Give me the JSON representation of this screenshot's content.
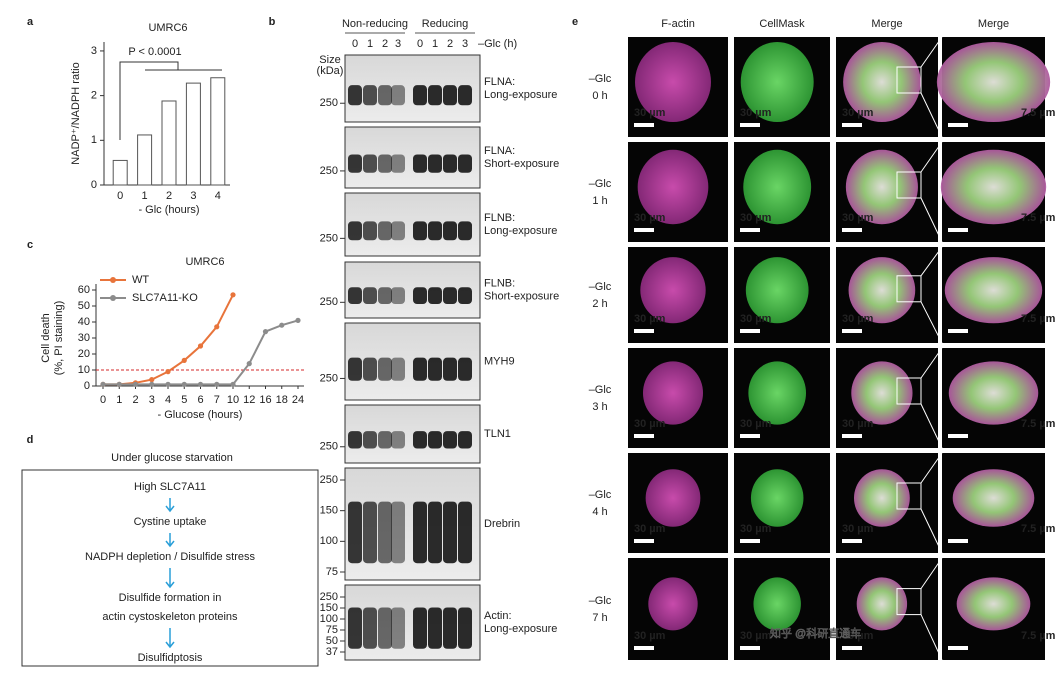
{
  "panels": [
    "a",
    "b",
    "c",
    "d",
    "e"
  ],
  "chart_data": [
    {
      "type": "bar",
      "title": "UMRC6",
      "categories": [
        "0",
        "1",
        "2",
        "3",
        "4"
      ],
      "values": [
        0.55,
        1.12,
        1.88,
        2.28,
        2.4
      ],
      "color": "#ffffff",
      "edge_color": "#555555",
      "ylim": [
        0,
        3.2
      ],
      "yticks": [
        0,
        1,
        2,
        3
      ],
      "xlabel": "- Glc (hours)",
      "ylabel": "NADP⁺/NADPH ratio",
      "annotation": "P < 0.0001"
    },
    {
      "type": "line",
      "title": "UMRC6",
      "categories": [
        "0",
        "1",
        "2",
        "3",
        "4",
        "5",
        "6",
        "7",
        "10",
        "12",
        "16",
        "18",
        "24"
      ],
      "series": [
        {
          "name": "WT",
          "color": "#e8743b",
          "values": [
            1,
            1,
            2,
            4,
            9,
            16,
            25,
            37,
            57,
            null,
            null,
            null,
            null
          ]
        },
        {
          "name": "SLC7A11-KO",
          "color": "#8c8c8c",
          "values": [
            1,
            1,
            1,
            1,
            1,
            1,
            1,
            1,
            1,
            14,
            34,
            38,
            41
          ]
        }
      ],
      "ylim": [
        0,
        60
      ],
      "yticks": [
        0,
        10,
        20,
        30,
        40,
        50,
        60
      ],
      "threshold": 10,
      "threshold_color": "#d62728",
      "xlabel": "- Glucose (hours)",
      "ylabel": [
        "Cell death",
        "(%, PI staining)"
      ],
      "legend": "upper left"
    }
  ],
  "blot": {
    "groups": [
      "Non-reducing",
      "Reducing"
    ],
    "lanes": [
      "0",
      "1",
      "2",
      "3",
      "0",
      "1",
      "2",
      "3"
    ],
    "lane_axis": "–Glc (h)",
    "size_label": [
      "Size",
      "(kDa)"
    ],
    "strips": [
      {
        "label": [
          "FLNA:",
          "Long-exposure"
        ],
        "markers": [
          250
        ]
      },
      {
        "label": [
          "FLNA:",
          "Short-exposure"
        ],
        "markers": [
          250
        ]
      },
      {
        "label": [
          "FLNB:",
          "Long-exposure"
        ],
        "markers": [
          250
        ]
      },
      {
        "label": [
          "FLNB:",
          "Short-exposure"
        ],
        "markers": [
          250
        ]
      },
      {
        "label": [
          "MYH9"
        ],
        "markers": [
          250
        ]
      },
      {
        "label": [
          "TLN1"
        ],
        "markers": [
          250
        ]
      },
      {
        "label": [
          "Drebrin"
        ],
        "markers": [
          250,
          150,
          100,
          75
        ]
      },
      {
        "label": [
          "Actin:",
          "Long-exposure"
        ],
        "markers": [
          250,
          150,
          100,
          75,
          50,
          37
        ]
      }
    ]
  },
  "diagram": {
    "title": "Under glucose starvation",
    "steps": [
      [
        "High SLC7A11"
      ],
      [
        "Cystine uptake"
      ],
      [
        "NADPH depletion / Disulfide stress"
      ],
      [
        "Disulfide formation in",
        "actin cystoskeleton proteins"
      ],
      [
        "Disulfidptosis"
      ]
    ]
  },
  "microscopy": {
    "columns": [
      "F-actin",
      "CellMask",
      "Merge",
      "Merge"
    ],
    "rows": [
      [
        "–Glc",
        "0 h"
      ],
      [
        "–Glc",
        "1 h"
      ],
      [
        "–Glc",
        "2 h"
      ],
      [
        "–Glc",
        "3 h"
      ],
      [
        "–Glc",
        "4 h"
      ],
      [
        "–Glc",
        "7 h"
      ]
    ],
    "scale_bars": [
      "30 µm",
      "7.5 µm"
    ]
  },
  "watermark": "知乎 @科研直通车"
}
